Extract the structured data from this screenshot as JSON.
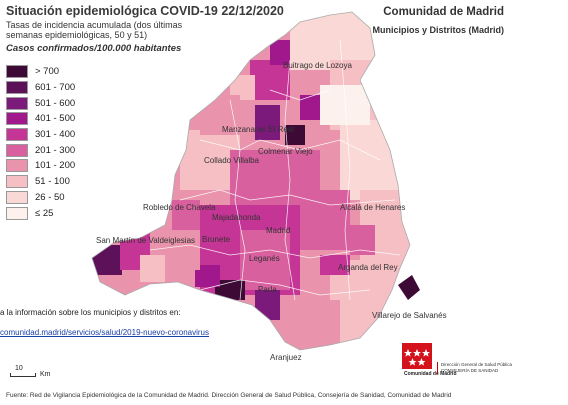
{
  "header": {
    "title": "Situación epidemiológica COVID-19  22/12/2020",
    "subtitle": "Tasas de incidencia acumulada (dos últimas semanas epidemiológicas, 50 y 51)",
    "units": "Casos confirmados/100.000 habitantes",
    "region": "Comunidad de Madrid",
    "region_sub": "Municipios y Distritos (Madrid)"
  },
  "legend": [
    {
      "label": "> 700",
      "color": "#3d0a36"
    },
    {
      "label": "601 - 700",
      "color": "#5c1159"
    },
    {
      "label": "501 - 600",
      "color": "#7b1a7a"
    },
    {
      "label": "401 - 500",
      "color": "#a0188c"
    },
    {
      "label": "301 - 400",
      "color": "#c53596"
    },
    {
      "label": "201 - 300",
      "color": "#d9609f"
    },
    {
      "label": "101 - 200",
      "color": "#e993ad"
    },
    {
      "label": "51 - 100",
      "color": "#f5bfc4"
    },
    {
      "label": "26 - 50",
      "color": "#fad8d5"
    },
    {
      "label": "≤ 25",
      "color": "#fdf1ee"
    }
  ],
  "places": [
    {
      "label": "Buitrago de Lozoya"
    },
    {
      "label": "Manzanares El Real"
    },
    {
      "label": "Colmenar Viejo"
    },
    {
      "label": "Collado Villalba"
    },
    {
      "label": "Robledo de Chavela"
    },
    {
      "label": "Majadahonda"
    },
    {
      "label": "Alcalá de Henares"
    },
    {
      "label": "Madrid"
    },
    {
      "label": "San Martín de Valdeiglesias"
    },
    {
      "label": "Brunete"
    },
    {
      "label": "Leganés"
    },
    {
      "label": "Arganda del Rey"
    },
    {
      "label": "Parla"
    },
    {
      "label": "Villarejo de Salvanés"
    },
    {
      "label": "Aranjuez"
    }
  ],
  "info_text": "a la información sobre los municipios y distritos en:",
  "link_text": "comunidad.madrid/servicios/salud/2019-nuevo-coronavirus",
  "scale": {
    "number": "10",
    "unit": "Km"
  },
  "footer": "Fuente: Red de Vigilancia Epidemiológica de la Comunidad de Madrid. Dirección General de Salud Pública, Consejería de Sanidad, Comunidad de Madrid",
  "logo": {
    "text": "Comunidad de Madrid"
  },
  "dept": {
    "line1": "Dirección General de Salud Pública",
    "line2": "CONSEJERÍA DE SANIDAD"
  }
}
